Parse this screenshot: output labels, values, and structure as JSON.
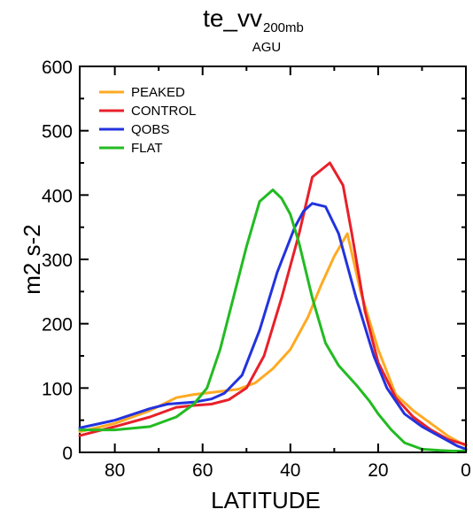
{
  "chart_data": {
    "type": "line",
    "title": "te_vv",
    "title_subscript": "200mb",
    "subtitle": "AGU",
    "xlabel": "LATITUDE",
    "ylabel": "m2 s-2",
    "xlim": [
      88,
      0
    ],
    "ylim": [
      0,
      600
    ],
    "x_ticks": [
      80,
      60,
      40,
      20,
      0
    ],
    "y_ticks": [
      0,
      100,
      200,
      300,
      400,
      500,
      600
    ],
    "grid": false,
    "legend_position": "top-left",
    "series": [
      {
        "name": "PEAKED",
        "color": "#FFAA22",
        "x": [
          88,
          80,
          72,
          66,
          62,
          58,
          52,
          48,
          44,
          40,
          36,
          33,
          30,
          27,
          24,
          20,
          16,
          12,
          8,
          4,
          0
        ],
        "y": [
          32,
          45,
          65,
          85,
          90,
          93,
          98,
          108,
          130,
          160,
          210,
          260,
          305,
          340,
          250,
          160,
          90,
          65,
          45,
          25,
          10
        ]
      },
      {
        "name": "CONTROL",
        "color": "#E8202A",
        "x": [
          88,
          80,
          72,
          66,
          62,
          58,
          54,
          50,
          46,
          42,
          38,
          35,
          31,
          28,
          26,
          23,
          20,
          16,
          12,
          8,
          4,
          0
        ],
        "y": [
          26,
          40,
          55,
          70,
          73,
          75,
          82,
          100,
          150,
          240,
          340,
          428,
          450,
          415,
          340,
          220,
          140,
          85,
          55,
          35,
          20,
          12
        ]
      },
      {
        "name": "QOBS",
        "color": "#2233DD",
        "x": [
          88,
          80,
          72,
          68,
          62,
          58,
          55,
          51,
          47,
          43,
          39,
          37,
          35,
          32,
          29,
          25,
          21,
          18,
          14,
          10,
          6,
          2,
          0
        ],
        "y": [
          38,
          50,
          68,
          75,
          78,
          83,
          92,
          120,
          190,
          280,
          350,
          375,
          387,
          382,
          340,
          240,
          150,
          100,
          60,
          40,
          25,
          10,
          5
        ]
      },
      {
        "name": "FLAT",
        "color": "#22BB22",
        "x": [
          88,
          80,
          72,
          66,
          62,
          59,
          56,
          53,
          50,
          47,
          44,
          42,
          40,
          38,
          35,
          32,
          29,
          25,
          22,
          20,
          17,
          14,
          10,
          6,
          3,
          0
        ],
        "y": [
          35,
          35,
          40,
          55,
          75,
          100,
          160,
          240,
          320,
          390,
          408,
          395,
          370,
          325,
          240,
          170,
          135,
          105,
          80,
          60,
          35,
          15,
          5,
          3,
          2,
          2
        ]
      }
    ]
  }
}
